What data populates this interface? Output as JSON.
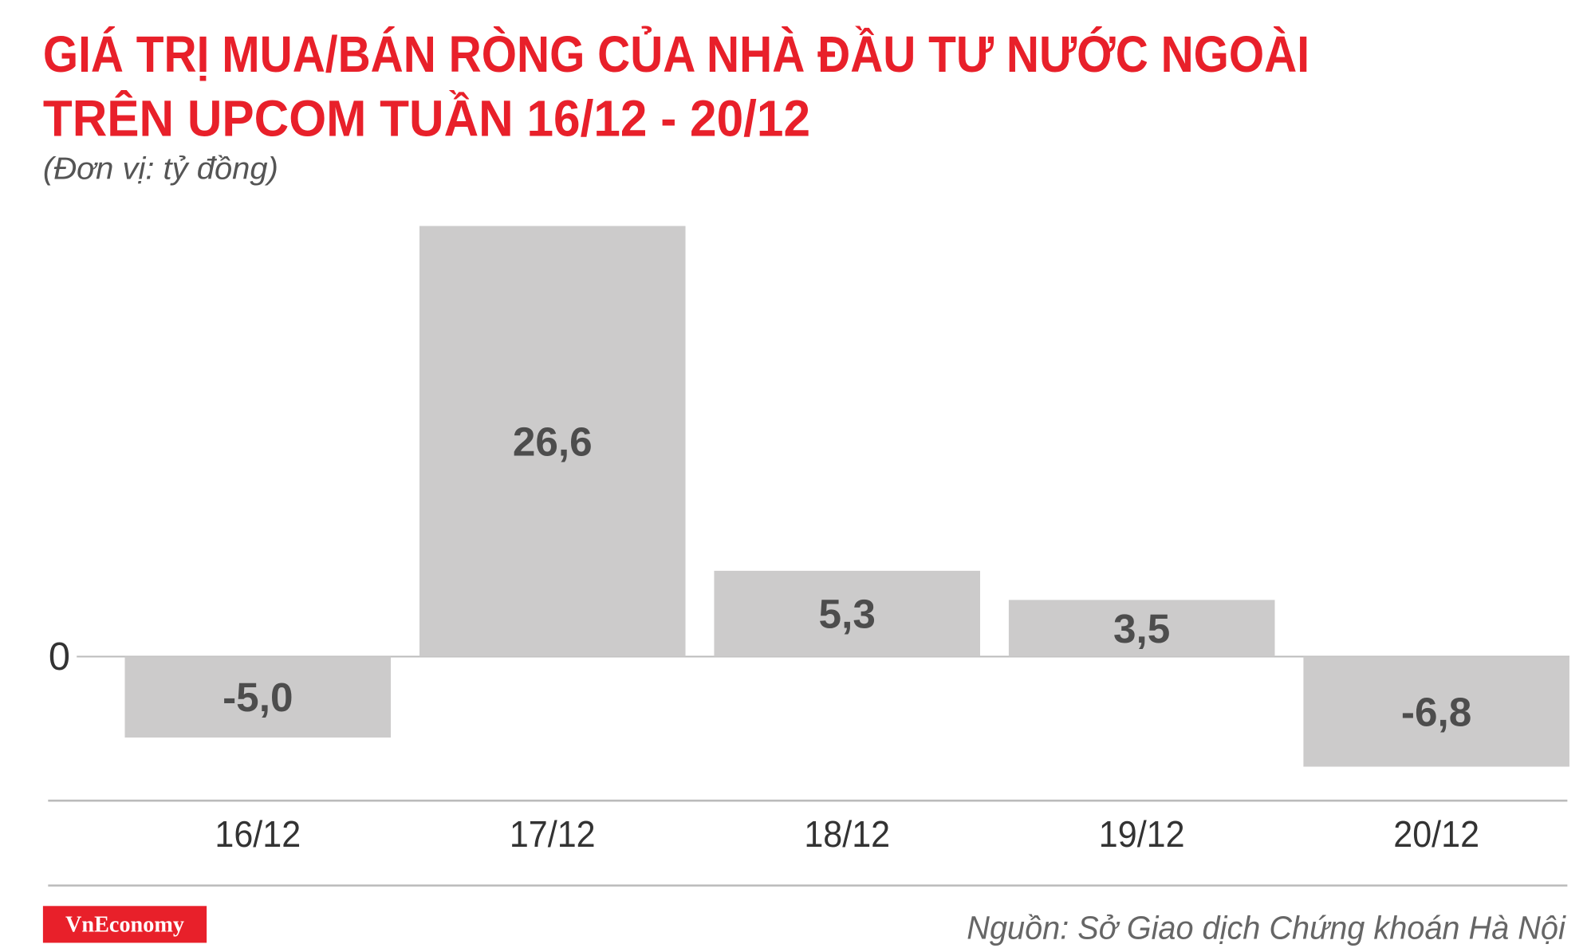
{
  "chart_data": {
    "type": "bar",
    "title": [
      "GIÁ TRỊ MUA/BÁN RÒNG CỦA NHÀ ĐẦU TƯ NƯỚC NGOÀI",
      "TRÊN UPCOM TUẦN 16/12 - 20/12"
    ],
    "subtitle": "(Đơn vị: tỷ đồng)",
    "categories": [
      "16/12",
      "17/12",
      "18/12",
      "19/12",
      "20/12"
    ],
    "values": [
      -5.0,
      26.6,
      5.3,
      3.5,
      -6.8
    ],
    "value_labels": [
      "-5,0",
      "26,6",
      "5,3",
      "3,5",
      "-6,8"
    ],
    "color": "#cccbcb",
    "ylim": [
      -8.9,
      26.6
    ],
    "yticks": [
      0
    ],
    "source": "Nguồn: Sở Giao dịch Chứng khoán Hà Nội",
    "brand": "VnEconomy"
  }
}
